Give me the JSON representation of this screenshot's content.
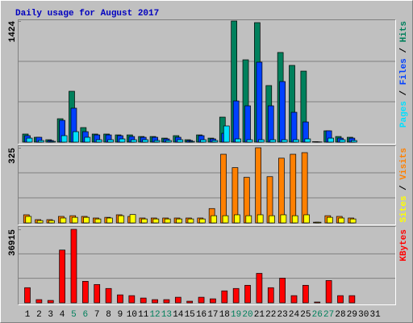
{
  "chart_data": [
    {
      "type": "bar",
      "title": "Daily usage for August 2017",
      "ylim": [
        0,
        1424
      ],
      "yticks": [
        1424
      ],
      "grid": true,
      "legend_separator": " / ",
      "series": [
        {
          "name": "Pages",
          "color": "#00E0FF",
          "values": [
            47,
            19,
            9,
            76,
            123,
            57,
            28,
            28,
            38,
            28,
            28,
            19,
            19,
            28,
            9,
            28,
            19,
            190,
            38,
            28,
            28,
            28,
            28,
            28,
            38,
            2,
            47,
            28,
            19,
            0,
            0
          ]
        },
        {
          "name": "Files",
          "color": "#0040FF",
          "values": [
            76,
            57,
            19,
            256,
            399,
            123,
            85,
            85,
            76,
            66,
            57,
            57,
            38,
            57,
            19,
            76,
            38,
            104,
            484,
            427,
            940,
            427,
            712,
            351,
            237,
            3,
            133,
            47,
            47,
            0,
            0
          ]
        },
        {
          "name": "Hits",
          "color": "#00805C",
          "values": [
            95,
            57,
            28,
            275,
            598,
            171,
            95,
            95,
            85,
            85,
            66,
            66,
            47,
            76,
            28,
            85,
            47,
            294,
            1424,
            968,
            1405,
            665,
            1054,
            902,
            835,
            5,
            133,
            66,
            57,
            0,
            0
          ]
        }
      ]
    },
    {
      "type": "bar",
      "ylim": [
        0,
        325
      ],
      "yticks": [
        325
      ],
      "grid": true,
      "legend_separator": " / ",
      "series": [
        {
          "name": "Sites",
          "color": "#FFFF00",
          "values": [
            28,
            10,
            10,
            21,
            24,
            24,
            17,
            21,
            31,
            36,
            17,
            17,
            17,
            17,
            17,
            17,
            31,
            31,
            35,
            31,
            35,
            31,
            35,
            31,
            35,
            3,
            24,
            21,
            17,
            0,
            0
          ]
        },
        {
          "name": "Visits",
          "color": "#FF8000",
          "values": [
            35,
            14,
            14,
            28,
            31,
            28,
            21,
            24,
            35,
            28,
            21,
            21,
            21,
            21,
            21,
            21,
            62,
            297,
            239,
            197,
            325,
            200,
            280,
            297,
            304,
            3,
            31,
            28,
            21,
            0,
            0
          ]
        }
      ]
    },
    {
      "type": "bar",
      "ylim": [
        0,
        36915
      ],
      "yticks": [
        36915
      ],
      "grid": true,
      "series": [
        {
          "name": "KBytes",
          "color": "#FF0000",
          "values": [
            7600,
            1600,
            1200,
            26500,
            36915,
            10800,
            9200,
            7200,
            4000,
            3600,
            2400,
            1600,
            1600,
            2800,
            800,
            2800,
            2000,
            6000,
            7200,
            8800,
            14800,
            7600,
            12400,
            3600,
            8800,
            400,
            11200,
            3600,
            3600,
            0,
            0
          ]
        }
      ],
      "categories": [
        "1",
        "2",
        "3",
        "4",
        "5",
        "6",
        "7",
        "8",
        "9",
        "10",
        "11",
        "12",
        "13",
        "14",
        "15",
        "16",
        "17",
        "18",
        "19",
        "20",
        "21",
        "22",
        "23",
        "24",
        "25",
        "26",
        "27",
        "28",
        "29",
        "30",
        "31"
      ],
      "category_colors": [
        "#000000",
        "#000000",
        "#000000",
        "#000000",
        "#00805C",
        "#00805C",
        "#000000",
        "#000000",
        "#000000",
        "#000000",
        "#000000",
        "#00805C",
        "#00805C",
        "#000000",
        "#000000",
        "#000000",
        "#000000",
        "#000000",
        "#00805C",
        "#00805C",
        "#000000",
        "#000000",
        "#000000",
        "#000000",
        "#000000",
        "#00805C",
        "#00805C",
        "#000000",
        "#000000",
        "#000000",
        "#000000"
      ]
    }
  ]
}
